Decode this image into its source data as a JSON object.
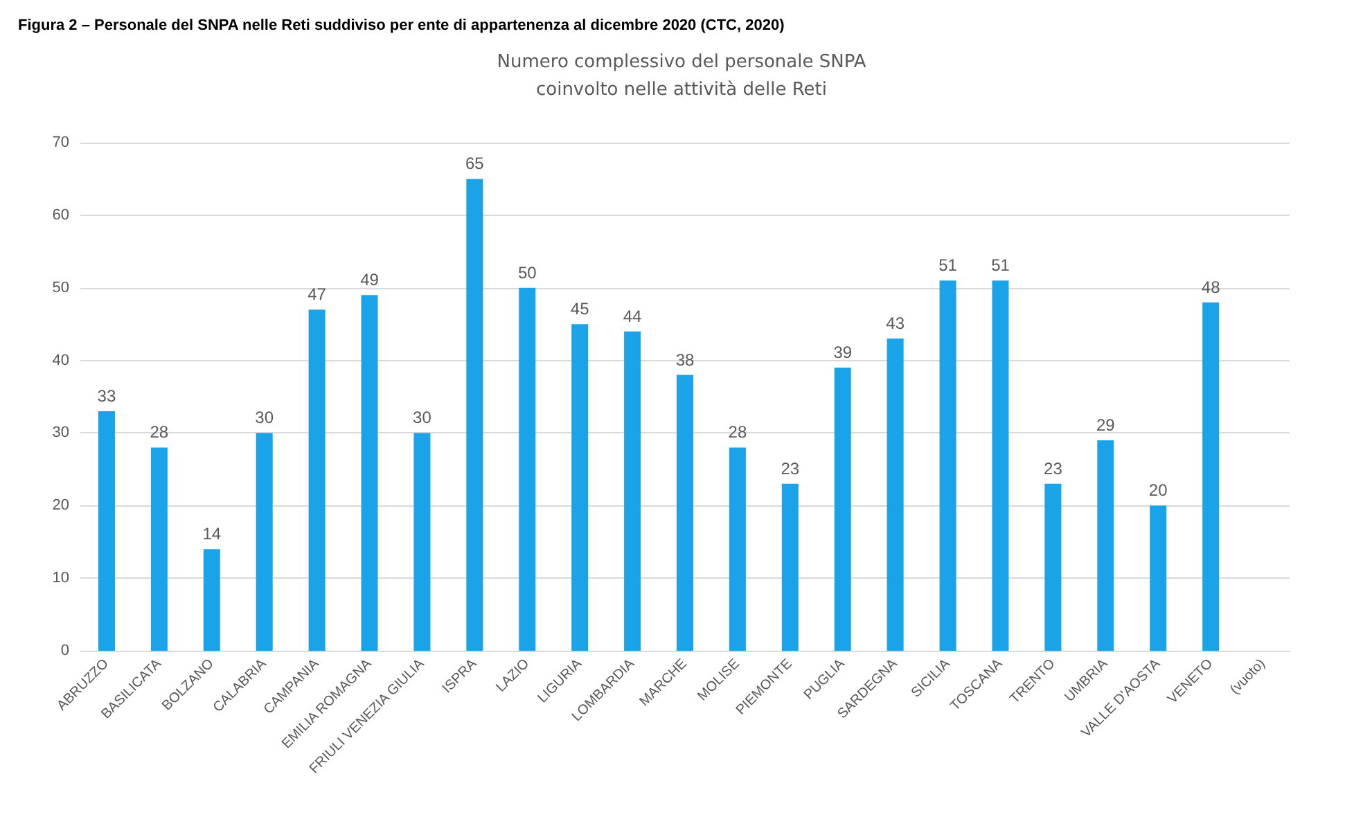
{
  "chart_data": {
    "type": "bar",
    "title": "Numero complessivo del personale SNPA\ncoinvolto nelle attività delle Reti",
    "annotations": [
      "Figura 2 – Personale del SNPA nelle Reti suddiviso per ente di appartenenza al dicembre 2020 (CTC, 2020)"
    ],
    "categories": [
      "ABRUZZO",
      "BASILICATA",
      "BOLZANO",
      "CALABRIA",
      "CAMPANIA",
      "EMILIA ROMAGNA",
      "FRIULI VENEZIA GIULIA",
      "ISPRA",
      "LAZIO",
      "LIGURIA",
      "LOMBARDIA",
      "MARCHE",
      "MOLISE",
      "PIEMONTE",
      "PUGLIA",
      "SARDEGNA",
      "SICILIA",
      "TOSCANA",
      "TRENTO",
      "UMBRIA",
      "VALLE D'AOSTA",
      "VENETO",
      "(vuoto)"
    ],
    "values": [
      33,
      28,
      14,
      30,
      47,
      49,
      30,
      65,
      50,
      45,
      44,
      38,
      28,
      23,
      39,
      43,
      51,
      51,
      23,
      29,
      20,
      48,
      null
    ],
    "color": "#1aa3e8",
    "ylim": [
      0,
      70
    ],
    "yticks": [
      0,
      10,
      20,
      30,
      40,
      50,
      60,
      70
    ],
    "grid": "y",
    "data_labels": true
  }
}
